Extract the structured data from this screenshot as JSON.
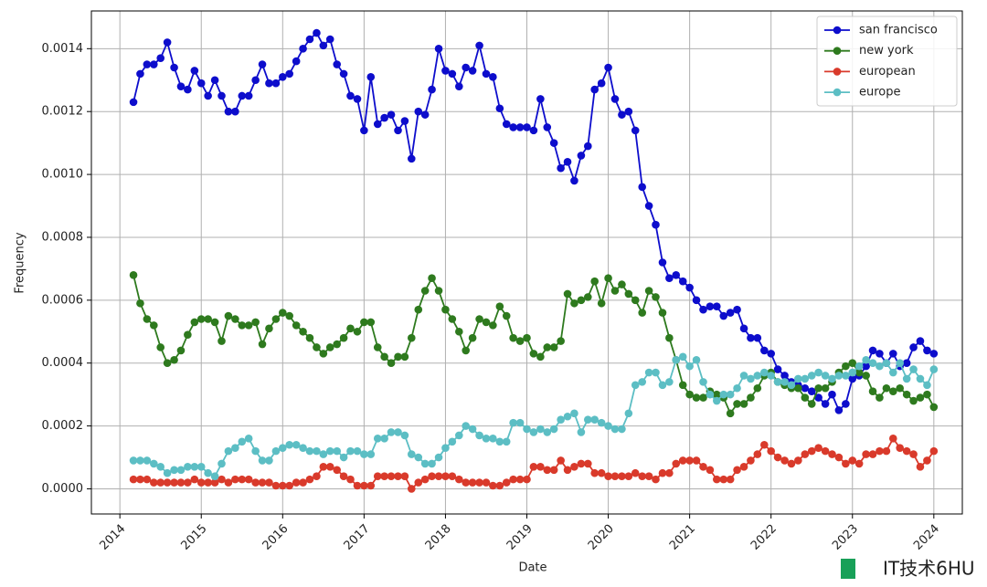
{
  "chart_data": {
    "type": "line",
    "xlabel": "Date",
    "ylabel": "Frequency",
    "watermark": "IT技术6HU",
    "x": [
      2014.167,
      2014.25,
      2014.333,
      2014.417,
      2014.5,
      2014.583,
      2014.667,
      2014.75,
      2014.833,
      2014.917,
      2015,
      2015.083,
      2015.167,
      2015.25,
      2015.333,
      2015.417,
      2015.5,
      2015.583,
      2015.667,
      2015.75,
      2015.833,
      2015.917,
      2016,
      2016.083,
      2016.167,
      2016.25,
      2016.333,
      2016.417,
      2016.5,
      2016.583,
      2016.667,
      2016.75,
      2016.833,
      2016.917,
      2017,
      2017.083,
      2017.167,
      2017.25,
      2017.333,
      2017.417,
      2017.5,
      2017.583,
      2017.667,
      2017.75,
      2017.833,
      2017.917,
      2018,
      2018.083,
      2018.167,
      2018.25,
      2018.333,
      2018.417,
      2018.5,
      2018.583,
      2018.667,
      2018.75,
      2018.833,
      2018.917,
      2019,
      2019.083,
      2019.167,
      2019.25,
      2019.333,
      2019.417,
      2019.5,
      2019.583,
      2019.667,
      2019.75,
      2019.833,
      2019.917,
      2020,
      2020.083,
      2020.167,
      2020.25,
      2020.333,
      2020.417,
      2020.5,
      2020.583,
      2020.667,
      2020.75,
      2020.833,
      2020.917,
      2021,
      2021.083,
      2021.167,
      2021.25,
      2021.333,
      2021.417,
      2021.5,
      2021.583,
      2021.667,
      2021.75,
      2021.833,
      2021.917,
      2022,
      2022.083,
      2022.167,
      2022.25,
      2022.333,
      2022.417,
      2022.5,
      2022.583,
      2022.667,
      2022.75,
      2022.833,
      2022.917,
      2023,
      2023.083,
      2023.167,
      2023.25,
      2023.333,
      2023.417,
      2023.5,
      2023.583,
      2023.667,
      2023.75,
      2023.833,
      2023.917,
      2024
    ],
    "series": [
      {
        "name": "san francisco",
        "color": "#0d0dcc",
        "values": [
          0.00123,
          0.00132,
          0.00135,
          0.00135,
          0.00137,
          0.00142,
          0.00134,
          0.00128,
          0.00127,
          0.00133,
          0.00129,
          0.00125,
          0.0013,
          0.00125,
          0.0012,
          0.0012,
          0.00125,
          0.00125,
          0.0013,
          0.00135,
          0.00129,
          0.00129,
          0.00131,
          0.00132,
          0.00136,
          0.0014,
          0.00143,
          0.00145,
          0.00141,
          0.00143,
          0.00135,
          0.00132,
          0.00125,
          0.00124,
          0.00114,
          0.00131,
          0.00116,
          0.00118,
          0.00119,
          0.00114,
          0.00117,
          0.00105,
          0.0012,
          0.00119,
          0.00127,
          0.0014,
          0.00133,
          0.00132,
          0.00128,
          0.00134,
          0.00133,
          0.00141,
          0.00132,
          0.00131,
          0.00121,
          0.00116,
          0.00115,
          0.00115,
          0.00115,
          0.00114,
          0.00124,
          0.00115,
          0.0011,
          0.00102,
          0.00104,
          0.00098,
          0.00106,
          0.00109,
          0.00127,
          0.00129,
          0.00134,
          0.00124,
          0.00119,
          0.0012,
          0.00114,
          0.00096,
          0.0009,
          0.00084,
          0.00072,
          0.00067,
          0.00068,
          0.00066,
          0.00064,
          0.0006,
          0.00057,
          0.00058,
          0.00058,
          0.00055,
          0.00056,
          0.00057,
          0.00051,
          0.00048,
          0.00048,
          0.00044,
          0.00043,
          0.00038,
          0.00036,
          0.00034,
          0.00033,
          0.00032,
          0.00031,
          0.00029,
          0.00027,
          0.0003,
          0.00025,
          0.00027,
          0.00035,
          0.00036,
          0.00039,
          0.00044,
          0.00043,
          0.0004,
          0.00043,
          0.00039,
          0.0004,
          0.00045,
          0.00047,
          0.00044,
          0.00043
        ]
      },
      {
        "name": "new york",
        "color": "#2e7a1e",
        "values": [
          0.00068,
          0.00059,
          0.00054,
          0.00052,
          0.00045,
          0.0004,
          0.00041,
          0.00044,
          0.00049,
          0.00053,
          0.00054,
          0.00054,
          0.00053,
          0.00047,
          0.00055,
          0.00054,
          0.00052,
          0.00052,
          0.00053,
          0.00046,
          0.00051,
          0.00054,
          0.00056,
          0.00055,
          0.00052,
          0.0005,
          0.00048,
          0.00045,
          0.00043,
          0.00045,
          0.00046,
          0.00048,
          0.00051,
          0.0005,
          0.00053,
          0.00053,
          0.00045,
          0.00042,
          0.0004,
          0.00042,
          0.00042,
          0.00048,
          0.00057,
          0.00063,
          0.00067,
          0.00063,
          0.00057,
          0.00054,
          0.0005,
          0.00044,
          0.00048,
          0.00054,
          0.00053,
          0.00052,
          0.00058,
          0.00055,
          0.00048,
          0.00047,
          0.00048,
          0.00043,
          0.00042,
          0.00045,
          0.00045,
          0.00047,
          0.00062,
          0.00059,
          0.0006,
          0.00061,
          0.00066,
          0.00059,
          0.00067,
          0.00063,
          0.00065,
          0.00062,
          0.0006,
          0.00056,
          0.00063,
          0.00061,
          0.00056,
          0.00048,
          0.00041,
          0.00033,
          0.0003,
          0.00029,
          0.00029,
          0.00031,
          0.0003,
          0.00029,
          0.00024,
          0.00027,
          0.00027,
          0.00029,
          0.00032,
          0.00036,
          0.00037,
          0.00034,
          0.00033,
          0.00032,
          0.00032,
          0.00029,
          0.00027,
          0.00032,
          0.00032,
          0.00034,
          0.00037,
          0.00039,
          0.0004,
          0.00037,
          0.00036,
          0.00031,
          0.00029,
          0.00032,
          0.00031,
          0.00032,
          0.0003,
          0.00028,
          0.00029,
          0.0003,
          0.00026
        ]
      },
      {
        "name": "european",
        "color": "#d93a2b",
        "values": [
          3e-05,
          3e-05,
          3e-05,
          2e-05,
          2e-05,
          2e-05,
          2e-05,
          2e-05,
          2e-05,
          3e-05,
          2e-05,
          2e-05,
          2e-05,
          3e-05,
          2e-05,
          3e-05,
          3e-05,
          3e-05,
          2e-05,
          2e-05,
          2e-05,
          1e-05,
          1e-05,
          1e-05,
          2e-05,
          2e-05,
          3e-05,
          4e-05,
          7e-05,
          7e-05,
          6e-05,
          4e-05,
          3e-05,
          1e-05,
          1e-05,
          1e-05,
          4e-05,
          4e-05,
          4e-05,
          4e-05,
          4e-05,
          0,
          2e-05,
          3e-05,
          4e-05,
          4e-05,
          4e-05,
          4e-05,
          3e-05,
          2e-05,
          2e-05,
          2e-05,
          2e-05,
          1e-05,
          1e-05,
          2e-05,
          3e-05,
          3e-05,
          3e-05,
          7e-05,
          7e-05,
          6e-05,
          6e-05,
          9e-05,
          6e-05,
          7e-05,
          8e-05,
          8e-05,
          5e-05,
          5e-05,
          4e-05,
          4e-05,
          4e-05,
          4e-05,
          5e-05,
          4e-05,
          4e-05,
          3e-05,
          5e-05,
          5e-05,
          8e-05,
          9e-05,
          9e-05,
          9e-05,
          7e-05,
          6e-05,
          3e-05,
          3e-05,
          3e-05,
          6e-05,
          7e-05,
          9e-05,
          0.00011,
          0.00014,
          0.00012,
          0.0001,
          9e-05,
          8e-05,
          9e-05,
          0.00011,
          0.00012,
          0.00013,
          0.00012,
          0.00011,
          0.0001,
          8e-05,
          9e-05,
          8e-05,
          0.00011,
          0.00011,
          0.00012,
          0.00012,
          0.00016,
          0.00013,
          0.00012,
          0.00011,
          7e-05,
          9e-05,
          0.00012
        ]
      },
      {
        "name": "europe",
        "color": "#5cbec4",
        "values": [
          9e-05,
          9e-05,
          9e-05,
          8e-05,
          7e-05,
          5e-05,
          6e-05,
          6e-05,
          7e-05,
          7e-05,
          7e-05,
          5e-05,
          4e-05,
          8e-05,
          0.00012,
          0.00013,
          0.00015,
          0.00016,
          0.00012,
          9e-05,
          9e-05,
          0.00012,
          0.00013,
          0.00014,
          0.00014,
          0.00013,
          0.00012,
          0.00012,
          0.00011,
          0.00012,
          0.00012,
          0.0001,
          0.00012,
          0.00012,
          0.00011,
          0.00011,
          0.00016,
          0.00016,
          0.00018,
          0.00018,
          0.00017,
          0.00011,
          0.0001,
          8e-05,
          8e-05,
          0.0001,
          0.00013,
          0.00015,
          0.00017,
          0.0002,
          0.00019,
          0.00017,
          0.00016,
          0.00016,
          0.00015,
          0.00015,
          0.00021,
          0.00021,
          0.00019,
          0.00018,
          0.00019,
          0.00018,
          0.00019,
          0.00022,
          0.00023,
          0.00024,
          0.00018,
          0.00022,
          0.00022,
          0.00021,
          0.0002,
          0.00019,
          0.00019,
          0.00024,
          0.00033,
          0.00034,
          0.00037,
          0.00037,
          0.00033,
          0.00034,
          0.00041,
          0.00042,
          0.00039,
          0.00041,
          0.00034,
          0.0003,
          0.00028,
          0.0003,
          0.0003,
          0.00032,
          0.00036,
          0.00035,
          0.00036,
          0.00037,
          0.00036,
          0.00034,
          0.00034,
          0.00033,
          0.00035,
          0.00035,
          0.00036,
          0.00037,
          0.00036,
          0.00035,
          0.00036,
          0.00036,
          0.00037,
          0.00039,
          0.00041,
          0.0004,
          0.00039,
          0.0004,
          0.00037,
          0.0004,
          0.00035,
          0.00038,
          0.00035,
          0.00033,
          0.00038
        ]
      }
    ],
    "xlim": [
      2013.65,
      2024.35
    ],
    "xticks": [
      2014,
      2015,
      2016,
      2017,
      2018,
      2019,
      2020,
      2021,
      2022,
      2023,
      2024
    ],
    "ylim": [
      -8e-05,
      0.00152
    ],
    "yticks": [
      {
        "value": 0,
        "label": "0.0000"
      },
      {
        "value": 0.0002,
        "label": "0.0002"
      },
      {
        "value": 0.0004,
        "label": "0.0004"
      },
      {
        "value": 0.0006,
        "label": "0.0006"
      },
      {
        "value": 0.0008,
        "label": "0.0008"
      },
      {
        "value": 0.001,
        "label": "0.0010"
      },
      {
        "value": 0.0012,
        "label": "0.0012"
      },
      {
        "value": 0.0014,
        "label": "0.0014"
      }
    ],
    "grid": true,
    "legend": "upper right"
  }
}
